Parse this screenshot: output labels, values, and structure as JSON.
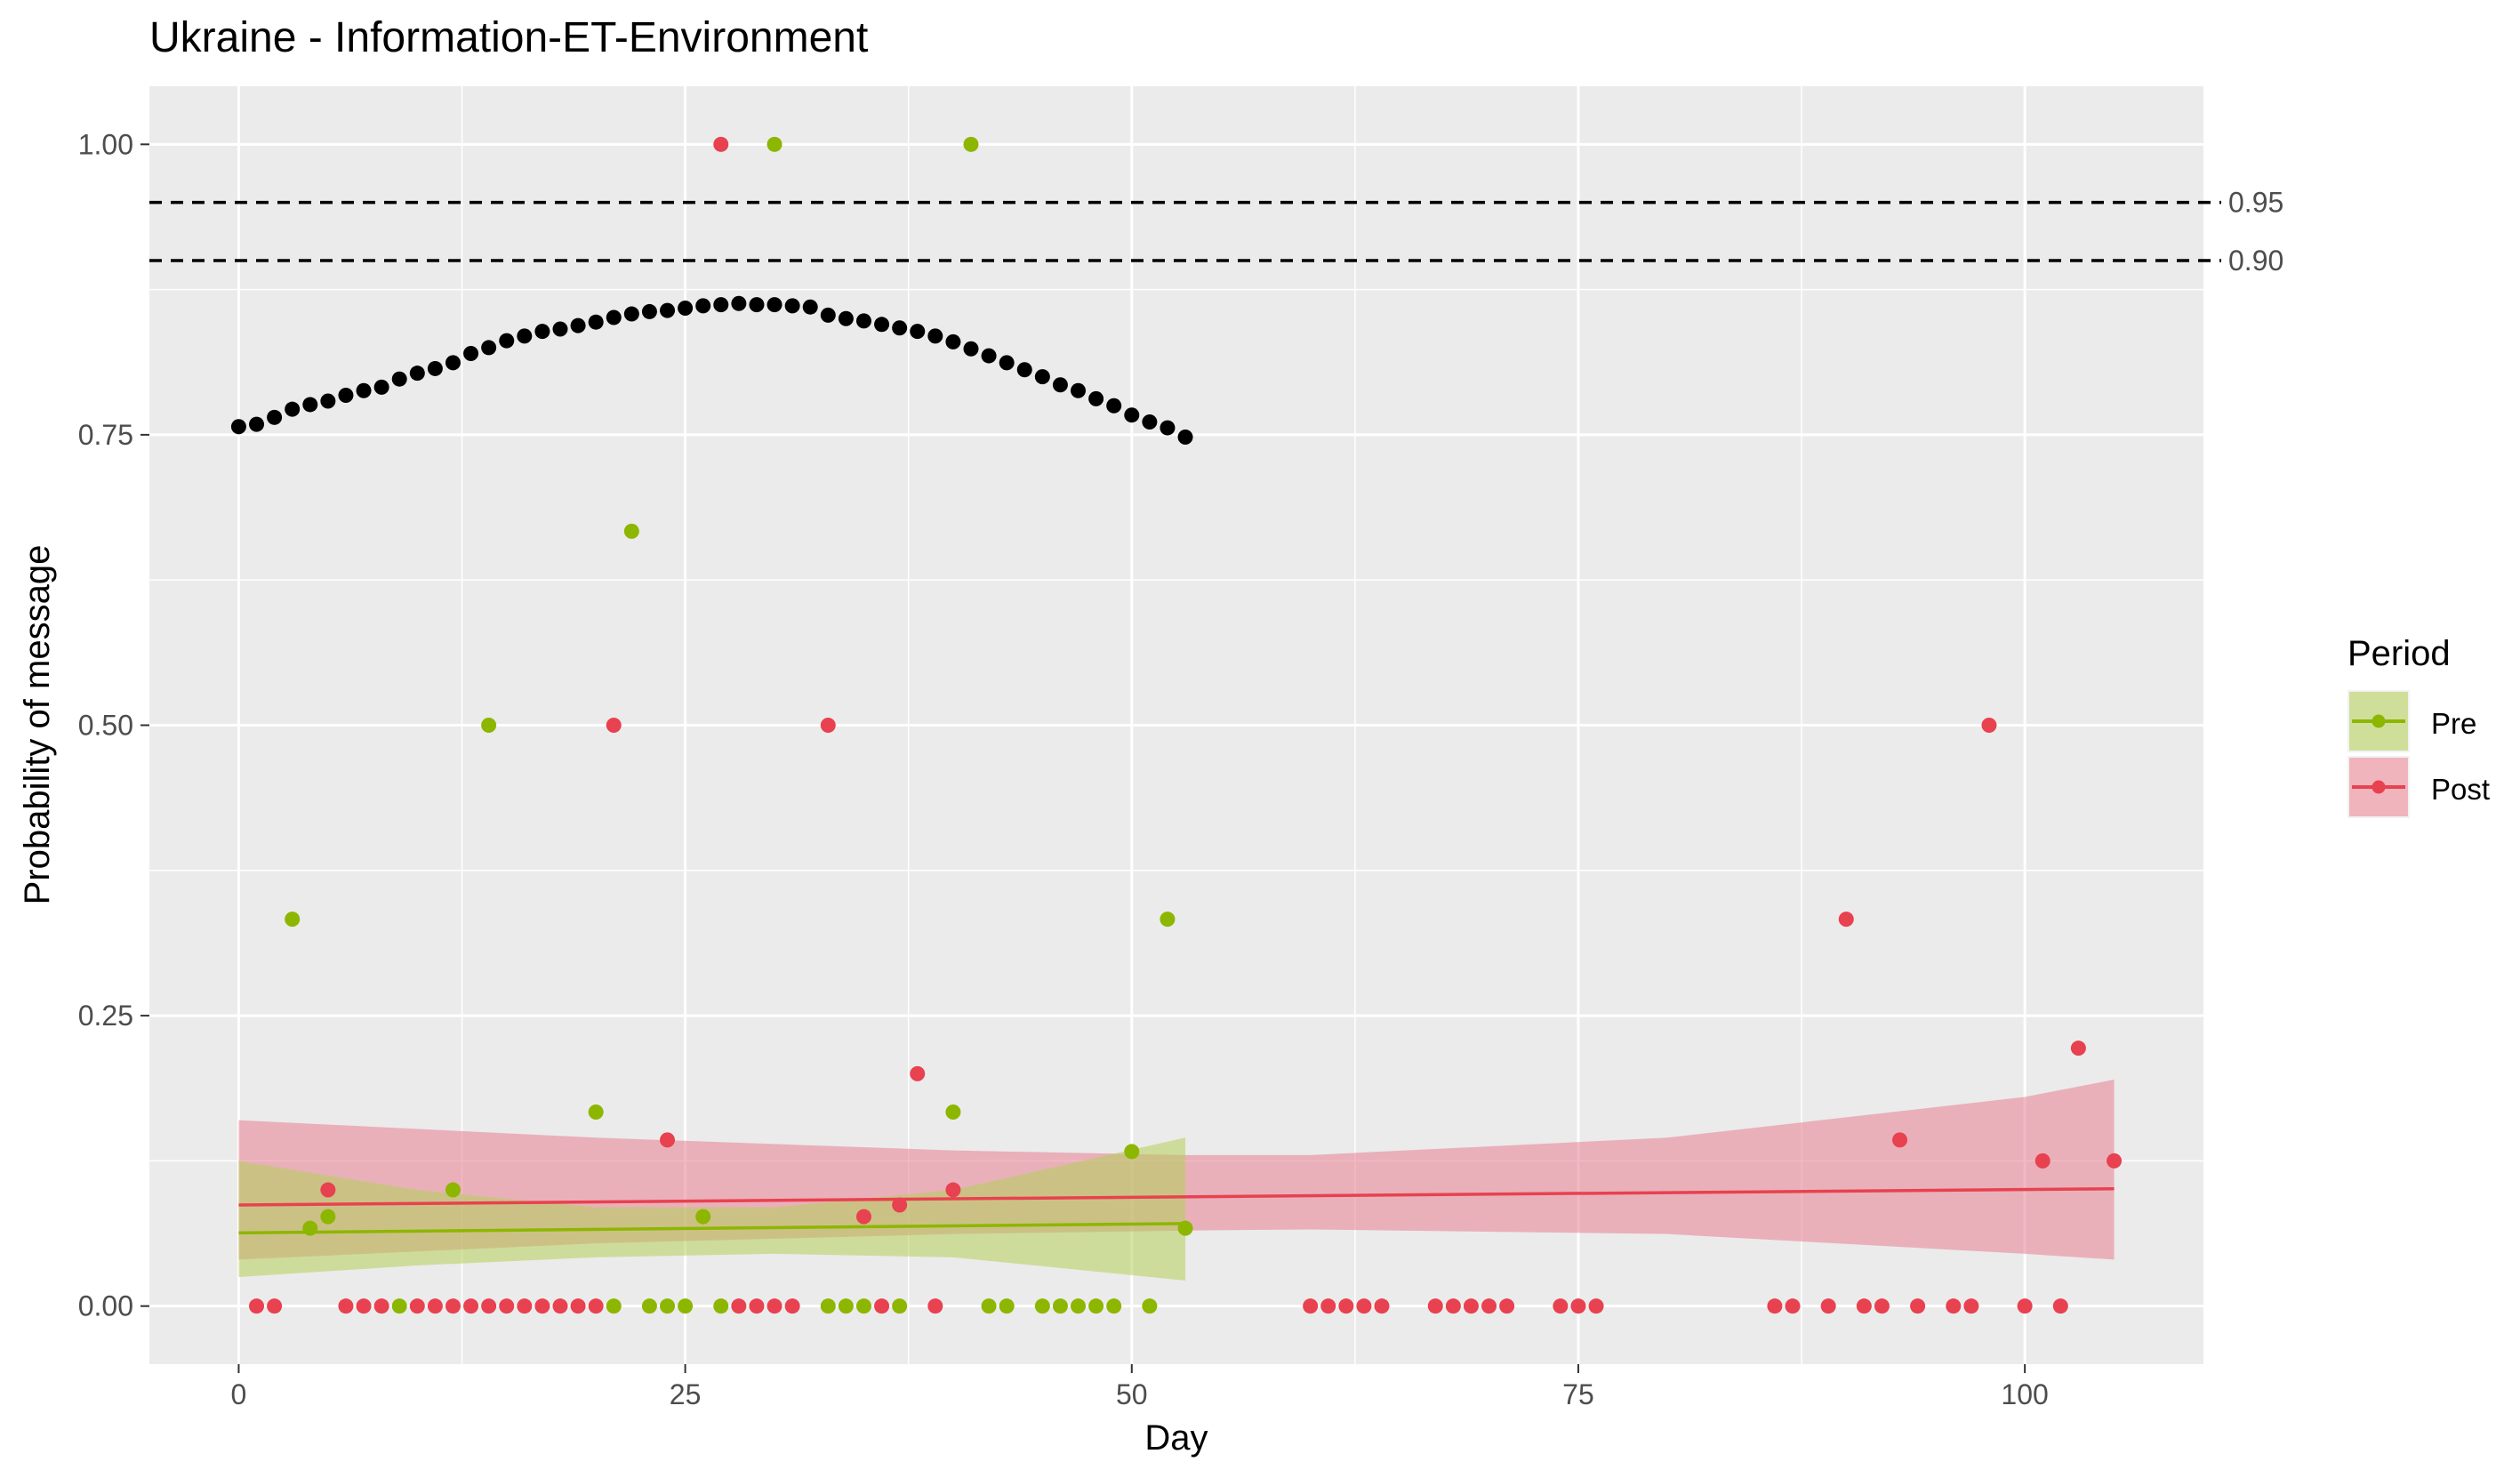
{
  "chart_data": {
    "type": "scatter",
    "title": "Ukraine - Information-ET-Environment",
    "xlabel": "Day",
    "ylabel": "Probability of message",
    "xlim": [
      -5,
      110
    ],
    "ylim": [
      -0.05,
      1.05
    ],
    "x_ticks": [
      0,
      25,
      50,
      75,
      100
    ],
    "x_tick_labels": [
      "0",
      "25",
      "50",
      "75",
      "100"
    ],
    "y_ticks": [
      0,
      0.25,
      0.5,
      0.75,
      1
    ],
    "y_tick_labels": [
      "0.00",
      "0.25",
      "0.50",
      "0.75",
      "1.00"
    ],
    "grid": true,
    "legend": {
      "title": "Period",
      "position": "right",
      "entries": [
        "Pre",
        "Post"
      ]
    },
    "reference_lines": [
      {
        "y": 0.95,
        "label": "0.95",
        "style": "dashed"
      },
      {
        "y": 0.9,
        "label": "0.90",
        "style": "dashed"
      }
    ],
    "threshold_curve": {
      "color": "#000000",
      "x": [
        0,
        1,
        2,
        3,
        4,
        5,
        6,
        7,
        8,
        9,
        10,
        11,
        12,
        13,
        14,
        15,
        16,
        17,
        18,
        19,
        20,
        21,
        22,
        23,
        24,
        25,
        26,
        27,
        28,
        29,
        30,
        31,
        32,
        33,
        34,
        35,
        36,
        37,
        38,
        39,
        40,
        41,
        42,
        43,
        44,
        45,
        46,
        47,
        48,
        49,
        50,
        51,
        52,
        53
      ],
      "y": [
        0.757,
        0.759,
        0.765,
        0.772,
        0.776,
        0.779,
        0.784,
        0.788,
        0.791,
        0.798,
        0.803,
        0.807,
        0.812,
        0.82,
        0.825,
        0.831,
        0.835,
        0.839,
        0.841,
        0.844,
        0.847,
        0.851,
        0.854,
        0.856,
        0.857,
        0.859,
        0.861,
        0.862,
        0.863,
        0.862,
        0.862,
        0.861,
        0.86,
        0.853,
        0.85,
        0.848,
        0.845,
        0.842,
        0.839,
        0.835,
        0.83,
        0.824,
        0.818,
        0.812,
        0.806,
        0.8,
        0.793,
        0.788,
        0.781,
        0.775,
        0.767,
        0.761,
        0.756,
        0.748
      ]
    },
    "series": [
      {
        "name": "Pre",
        "color": "#8db600",
        "ribbon_color": "#b5cf5a",
        "points": [
          [
            3,
            0.333
          ],
          [
            4,
            0.067
          ],
          [
            5,
            0.077
          ],
          [
            9,
            0
          ],
          [
            12,
            0.1
          ],
          [
            14,
            0.5
          ],
          [
            20,
            0.167
          ],
          [
            21,
            0
          ],
          [
            22,
            0.667
          ],
          [
            23,
            0
          ],
          [
            24,
            0
          ],
          [
            25,
            0
          ],
          [
            26,
            0.077
          ],
          [
            27,
            0
          ],
          [
            30,
            1.0
          ],
          [
            33,
            0
          ],
          [
            34,
            0
          ],
          [
            35,
            0
          ],
          [
            37,
            0
          ],
          [
            40,
            0.167
          ],
          [
            41,
            1.0
          ],
          [
            42,
            0
          ],
          [
            43,
            0
          ],
          [
            45,
            0
          ],
          [
            46,
            0
          ],
          [
            47,
            0
          ],
          [
            48,
            0
          ],
          [
            49,
            0
          ],
          [
            50,
            0.133
          ],
          [
            51,
            0
          ],
          [
            52,
            0.333
          ],
          [
            53,
            0.067
          ]
        ],
        "fit": {
          "x": [
            0,
            53
          ],
          "y": [
            0.063,
            0.071
          ]
        },
        "ribbon": {
          "x": [
            0,
            10,
            20,
            30,
            40,
            53
          ],
          "lower": [
            0.025,
            0.035,
            0.042,
            0.045,
            0.042,
            0.022
          ],
          "upper": [
            0.125,
            0.1,
            0.085,
            0.085,
            0.1,
            0.145
          ]
        }
      },
      {
        "name": "Post",
        "color": "#e8414f",
        "ribbon_color": "#e87f92",
        "points": [
          [
            1,
            0
          ],
          [
            2,
            0
          ],
          [
            5,
            0.1
          ],
          [
            6,
            0
          ],
          [
            7,
            0
          ],
          [
            8,
            0
          ],
          [
            10,
            0
          ],
          [
            11,
            0
          ],
          [
            12,
            0
          ],
          [
            13,
            0
          ],
          [
            14,
            0
          ],
          [
            15,
            0
          ],
          [
            16,
            0
          ],
          [
            17,
            0
          ],
          [
            18,
            0
          ],
          [
            19,
            0
          ],
          [
            20,
            0
          ],
          [
            21,
            0.5
          ],
          [
            24,
            0.143
          ],
          [
            27,
            1.0
          ],
          [
            28,
            0
          ],
          [
            29,
            0
          ],
          [
            30,
            0
          ],
          [
            31,
            0
          ],
          [
            33,
            0.5
          ],
          [
            35,
            0.077
          ],
          [
            36,
            0
          ],
          [
            37,
            0.087
          ],
          [
            38,
            0.2
          ],
          [
            39,
            0
          ],
          [
            40,
            0.1
          ],
          [
            60,
            0
          ],
          [
            61,
            0
          ],
          [
            62,
            0
          ],
          [
            63,
            0
          ],
          [
            64,
            0
          ],
          [
            67,
            0
          ],
          [
            68,
            0
          ],
          [
            69,
            0
          ],
          [
            70,
            0
          ],
          [
            71,
            0
          ],
          [
            74,
            0
          ],
          [
            75,
            0
          ],
          [
            76,
            0
          ],
          [
            86,
            0
          ],
          [
            87,
            0
          ],
          [
            89,
            0
          ],
          [
            90,
            0.333
          ],
          [
            91,
            0
          ],
          [
            92,
            0
          ],
          [
            93,
            0.143
          ],
          [
            94,
            0
          ],
          [
            96,
            0
          ],
          [
            97,
            0
          ],
          [
            98,
            0.5
          ],
          [
            100,
            0
          ],
          [
            101,
            0.125
          ],
          [
            102,
            0
          ],
          [
            103,
            0.222
          ],
          [
            105,
            0.125
          ]
        ],
        "fit": {
          "x": [
            0,
            105
          ],
          "y": [
            0.087,
            0.101
          ]
        },
        "ribbon": {
          "x": [
            0,
            20,
            40,
            53,
            60,
            80,
            100,
            105
          ],
          "lower": [
            0.04,
            0.054,
            0.062,
            0.065,
            0.066,
            0.062,
            0.045,
            0.04
          ],
          "upper": [
            0.16,
            0.145,
            0.134,
            0.13,
            0.13,
            0.145,
            0.18,
            0.195
          ]
        }
      }
    ]
  }
}
